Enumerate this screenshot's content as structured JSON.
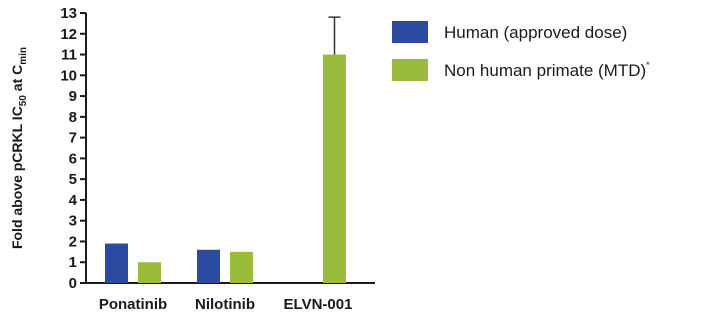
{
  "chart_data": {
    "type": "bar",
    "categories": [
      "Ponatinib",
      "Nilotinib",
      "ELVN-001"
    ],
    "series": [
      {
        "name": "Human (approved dose)",
        "color": "#2b4aa0",
        "values": [
          1.9,
          1.6,
          null
        ]
      },
      {
        "name": "Non human primate (MTD)",
        "name_superscript": "*",
        "color": "#9bbb3c",
        "values": [
          1.0,
          1.5,
          11.0
        ],
        "error_upper": [
          null,
          null,
          1.8
        ]
      }
    ],
    "ylabel": {
      "main": "Fold above pCRKL IC",
      "sub1": "50",
      "mid": " at C",
      "sub2": "min"
    },
    "ylim": [
      0,
      13
    ],
    "yticks": [
      0,
      1,
      2,
      3,
      4,
      5,
      6,
      7,
      8,
      9,
      10,
      11,
      12,
      13
    ],
    "legend_position": "top-right",
    "grid": false
  }
}
